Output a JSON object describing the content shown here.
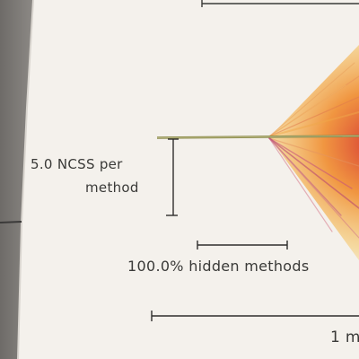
{
  "legend": {
    "ncss_per_method_line1": "5.0 NCSS per",
    "ncss_per_method_line2": "method",
    "hidden_methods": "100.0% hidden methods",
    "time_scale_fragment": "1 m"
  },
  "colors": {
    "paper": "#f4f1ec",
    "ink": "#3a3a38",
    "left_surface": "#7a7774",
    "wedge_hot": "#f2a83a",
    "wedge_pink": "#c8557a"
  }
}
